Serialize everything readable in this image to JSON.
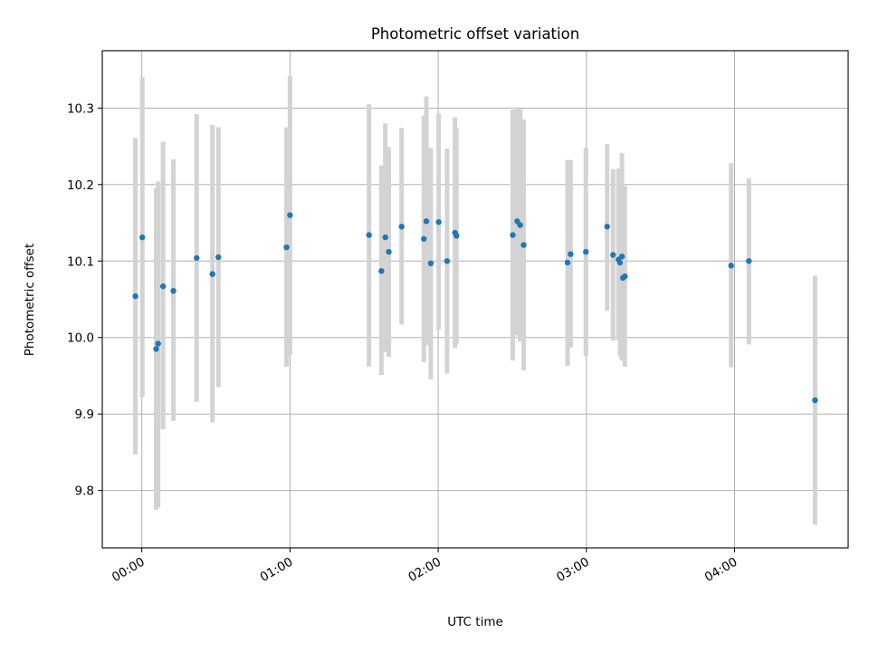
{
  "chart_data": {
    "type": "scatter",
    "title": "Photometric offset variation",
    "xlabel": "UTC time",
    "ylabel": "Photometric offset",
    "x_unit": "minutes",
    "xlim": [
      -8,
      143
    ],
    "ylim": [
      9.725,
      10.375
    ],
    "x_ticks": [
      {
        "label": "00:00",
        "value": 0
      },
      {
        "label": "01:00",
        "value": 30
      },
      {
        "label": "02:00",
        "value": 60
      },
      {
        "label": "03:00",
        "value": 90
      },
      {
        "label": "04:00",
        "value": 120
      }
    ],
    "y_ticks": [
      {
        "label": "9.8",
        "value": 9.8
      },
      {
        "label": "9.9",
        "value": 9.9
      },
      {
        "label": "10.0",
        "value": 10.0
      },
      {
        "label": "10.1",
        "value": 10.1
      },
      {
        "label": "10.2",
        "value": 10.2
      },
      {
        "label": "10.3",
        "value": 10.3
      }
    ],
    "grid": true,
    "colors": {
      "point": "#1f77b4",
      "errorbar": "#d3d3d3",
      "grid": "#b0b0b0"
    },
    "series": [
      {
        "points": [
          {
            "x": -1.3,
            "y": 10.054,
            "lo": 9.847,
            "hi": 10.261
          },
          {
            "x": 0.1,
            "y": 10.131,
            "lo": 9.922,
            "hi": 10.34
          },
          {
            "x": 2.9,
            "y": 9.985,
            "lo": 9.775,
            "hi": 10.195
          },
          {
            "x": 3.3,
            "y": 9.992,
            "lo": 9.778,
            "hi": 10.204
          },
          {
            "x": 4.3,
            "y": 10.067,
            "lo": 9.88,
            "hi": 10.256
          },
          {
            "x": 6.4,
            "y": 10.061,
            "lo": 9.891,
            "hi": 10.233
          },
          {
            "x": 11.1,
            "y": 10.104,
            "lo": 9.916,
            "hi": 10.292
          },
          {
            "x": 14.3,
            "y": 10.083,
            "lo": 9.889,
            "hi": 10.278
          },
          {
            "x": 15.5,
            "y": 10.105,
            "lo": 9.935,
            "hi": 10.275
          },
          {
            "x": 29.3,
            "y": 10.118,
            "lo": 9.962,
            "hi": 10.275
          },
          {
            "x": 30.0,
            "y": 10.16,
            "lo": 9.977,
            "hi": 10.342
          },
          {
            "x": 46.0,
            "y": 10.134,
            "lo": 9.962,
            "hi": 10.305
          },
          {
            "x": 48.5,
            "y": 10.087,
            "lo": 9.951,
            "hi": 10.225
          },
          {
            "x": 49.3,
            "y": 10.131,
            "lo": 9.981,
            "hi": 10.28
          },
          {
            "x": 50.0,
            "y": 10.112,
            "lo": 9.975,
            "hi": 10.249
          },
          {
            "x": 52.6,
            "y": 10.145,
            "lo": 10.017,
            "hi": 10.274
          },
          {
            "x": 57.1,
            "y": 10.129,
            "lo": 9.968,
            "hi": 10.29
          },
          {
            "x": 57.6,
            "y": 10.152,
            "lo": 9.99,
            "hi": 10.315
          },
          {
            "x": 58.5,
            "y": 10.097,
            "lo": 9.945,
            "hi": 10.248
          },
          {
            "x": 60.1,
            "y": 10.151,
            "lo": 10.01,
            "hi": 10.293
          },
          {
            "x": 61.8,
            "y": 10.1,
            "lo": 9.953,
            "hi": 10.247
          },
          {
            "x": 63.4,
            "y": 10.137,
            "lo": 9.986,
            "hi": 10.288
          },
          {
            "x": 63.7,
            "y": 10.133,
            "lo": 9.992,
            "hi": 10.274
          },
          {
            "x": 75.1,
            "y": 10.134,
            "lo": 9.97,
            "hi": 10.298
          },
          {
            "x": 76.0,
            "y": 10.152,
            "lo": 10.003,
            "hi": 10.301
          },
          {
            "x": 76.6,
            "y": 10.147,
            "lo": 9.995,
            "hi": 10.299
          },
          {
            "x": 77.3,
            "y": 10.121,
            "lo": 9.957,
            "hi": 10.285
          },
          {
            "x": 86.2,
            "y": 10.098,
            "lo": 9.963,
            "hi": 10.232
          },
          {
            "x": 86.8,
            "y": 10.109,
            "lo": 9.987,
            "hi": 10.232
          },
          {
            "x": 89.9,
            "y": 10.112,
            "lo": 9.976,
            "hi": 10.248
          },
          {
            "x": 94.2,
            "y": 10.145,
            "lo": 10.035,
            "hi": 10.253
          },
          {
            "x": 95.4,
            "y": 10.108,
            "lo": 9.996,
            "hi": 10.22
          },
          {
            "x": 96.5,
            "y": 10.102,
            "lo": 9.997,
            "hi": 10.221
          },
          {
            "x": 96.8,
            "y": 10.098,
            "lo": 9.975,
            "hi": 10.204
          },
          {
            "x": 97.2,
            "y": 10.106,
            "lo": 9.97,
            "hi": 10.241
          },
          {
            "x": 97.4,
            "y": 10.078,
            "lo": 9.972,
            "hi": 10.184
          },
          {
            "x": 97.8,
            "y": 10.08,
            "lo": 9.962,
            "hi": 10.198
          },
          {
            "x": 119.3,
            "y": 10.094,
            "lo": 9.961,
            "hi": 10.228
          },
          {
            "x": 122.9,
            "y": 10.1,
            "lo": 9.991,
            "hi": 10.208
          },
          {
            "x": 136.3,
            "y": 9.918,
            "lo": 9.755,
            "hi": 10.081
          }
        ]
      }
    ]
  }
}
